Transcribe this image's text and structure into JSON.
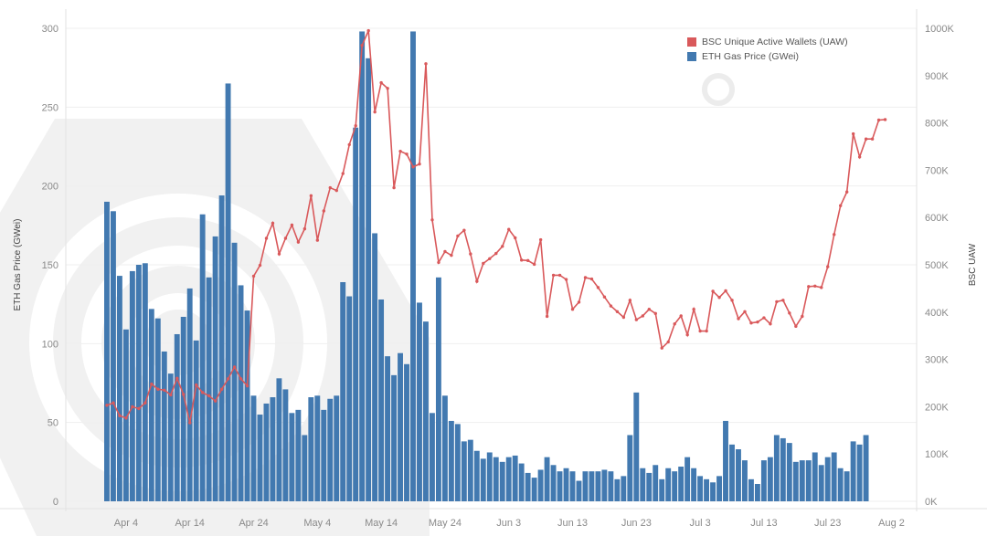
{
  "chart_data": {
    "type": "bar+line",
    "legend_position": "top-right",
    "grid": true,
    "xlabel": "",
    "ylabel_left": "ETH Gas Price (GWei)",
    "ylabel_right": "BSC UAW",
    "ylim_left": [
      0,
      300
    ],
    "ylim_right": [
      0,
      1000000
    ],
    "yticks_left": [
      "0",
      "50",
      "100",
      "150",
      "200",
      "250",
      "300"
    ],
    "yticks_right": [
      "0K",
      "100K",
      "200K",
      "300K",
      "400K",
      "500K",
      "600K",
      "700K",
      "800K",
      "900K",
      "1000K"
    ],
    "xticks": [
      {
        "label": "Apr 4",
        "date": "Apr 4"
      },
      {
        "label": "Apr 14",
        "date": "Apr 14"
      },
      {
        "label": "Apr 24",
        "date": "Apr 24"
      },
      {
        "label": "May 4",
        "date": "May 4"
      },
      {
        "label": "May 14",
        "date": "May 14"
      },
      {
        "label": "May 24",
        "date": "May 24"
      },
      {
        "label": "Jun 3",
        "date": "Jun 3"
      },
      {
        "label": "Jun 13",
        "date": "Jun 13"
      },
      {
        "label": "Jun 23",
        "date": "Jun 23"
      },
      {
        "label": "Jul 3",
        "date": "Jul 3"
      },
      {
        "label": "Jul 13",
        "date": "Jul 13"
      },
      {
        "label": "Jul 23",
        "date": "Jul 23"
      },
      {
        "label": "Aug 2",
        "date": "Aug 2"
      }
    ],
    "x": [
      "Apr 1",
      "Apr 2",
      "Apr 3",
      "Apr 4",
      "Apr 5",
      "Apr 6",
      "Apr 7",
      "Apr 8",
      "Apr 9",
      "Apr 10",
      "Apr 11",
      "Apr 12",
      "Apr 13",
      "Apr 14",
      "Apr 15",
      "Apr 16",
      "Apr 17",
      "Apr 18",
      "Apr 19",
      "Apr 20",
      "Apr 21",
      "Apr 22",
      "Apr 23",
      "Apr 24",
      "Apr 25",
      "Apr 26",
      "Apr 27",
      "Apr 28",
      "Apr 29",
      "Apr 30",
      "May 1",
      "May 2",
      "May 3",
      "May 4",
      "May 5",
      "May 6",
      "May 7",
      "May 8",
      "May 9",
      "May 10",
      "May 11",
      "May 12",
      "May 13",
      "May 14",
      "May 15",
      "May 16",
      "May 17",
      "May 18",
      "May 19",
      "May 20",
      "May 21",
      "May 22",
      "May 23",
      "May 24",
      "May 25",
      "May 26",
      "May 27",
      "May 28",
      "May 29",
      "May 30",
      "May 31",
      "Jun 1",
      "Jun 2",
      "Jun 3",
      "Jun 4",
      "Jun 5",
      "Jun 6",
      "Jun 7",
      "Jun 8",
      "Jun 9",
      "Jun 10",
      "Jun 11",
      "Jun 12",
      "Jun 13",
      "Jun 14",
      "Jun 15",
      "Jun 16",
      "Jun 17",
      "Jun 18",
      "Jun 19",
      "Jun 20",
      "Jun 21",
      "Jun 22",
      "Jun 23",
      "Jun 24",
      "Jun 25",
      "Jun 26",
      "Jun 27",
      "Jun 28",
      "Jun 29",
      "Jun 30",
      "Jul 1",
      "Jul 2",
      "Jul 3",
      "Jul 4",
      "Jul 5",
      "Jul 6",
      "Jul 7",
      "Jul 8",
      "Jul 9",
      "Jul 10",
      "Jul 11",
      "Jul 12",
      "Jul 13",
      "Jul 14",
      "Jul 15",
      "Jul 16",
      "Jul 17",
      "Jul 18",
      "Jul 19",
      "Jul 20",
      "Jul 21",
      "Jul 22",
      "Jul 23",
      "Jul 24",
      "Jul 25",
      "Jul 26",
      "Jul 27",
      "Jul 28",
      "Jul 29",
      "Jul 30",
      "Jul 31",
      "Aug 1"
    ],
    "series": [
      {
        "name": "ETH Gas Price (GWei)",
        "type": "bar",
        "axis": "left",
        "color": "#4279b0",
        "values": [
          190,
          184,
          143,
          109,
          146,
          150,
          151,
          122,
          116,
          95,
          81,
          106,
          117,
          135,
          102,
          182,
          142,
          168,
          194,
          265,
          164,
          137,
          121,
          67,
          55,
          62,
          66,
          78,
          71,
          56,
          58,
          42,
          66,
          67,
          58,
          65,
          67,
          139,
          130,
          237,
          298,
          281,
          170,
          128,
          92,
          80,
          94,
          87,
          298,
          126,
          114,
          56,
          142,
          67,
          51,
          49,
          38,
          39,
          32,
          27,
          31,
          28,
          25,
          28,
          29,
          24,
          18,
          15,
          20,
          28,
          23,
          19,
          21,
          19,
          13,
          19,
          19,
          19,
          20,
          19,
          14,
          16,
          42,
          69,
          21,
          18,
          23,
          14,
          21,
          19,
          22,
          28,
          21,
          16,
          14,
          12,
          16,
          51,
          36,
          33,
          26,
          14,
          11,
          26,
          28,
          42,
          40,
          37,
          25,
          26,
          26,
          31,
          23,
          28,
          31,
          21,
          19,
          38,
          36,
          42,
          null,
          null,
          null
        ]
      },
      {
        "name": "BSC Unique Active Wallets (UAW)",
        "type": "line",
        "axis": "right",
        "color": "#d9595b",
        "values": [
          203000,
          208000,
          181000,
          176000,
          200000,
          196000,
          208000,
          248000,
          237000,
          235000,
          225000,
          260000,
          226000,
          166000,
          246000,
          230000,
          223000,
          212000,
          237000,
          259000,
          284000,
          259000,
          244000,
          476000,
          499000,
          556000,
          588000,
          523000,
          556000,
          584000,
          548000,
          576000,
          646000,
          552000,
          614000,
          663000,
          657000,
          693000,
          754000,
          794000,
          964000,
          995000,
          823000,
          885000,
          873000,
          663000,
          740000,
          734000,
          707000,
          713000,
          925000,
          595000,
          505000,
          528000,
          520000,
          561000,
          573000,
          523000,
          465000,
          503000,
          513000,
          524000,
          539000,
          575000,
          557000,
          510000,
          509000,
          501000,
          553000,
          391000,
          478000,
          478000,
          469000,
          406000,
          421000,
          473000,
          470000,
          452000,
          432000,
          413000,
          401000,
          389000,
          425000,
          384000,
          392000,
          406000,
          397000,
          324000,
          337000,
          375000,
          392000,
          352000,
          406000,
          360000,
          360000,
          444000,
          431000,
          445000,
          425000,
          386000,
          401000,
          377000,
          379000,
          388000,
          375000,
          422000,
          425000,
          398000,
          370000,
          391000,
          454000,
          455000,
          452000,
          496000,
          564000,
          625000,
          654000,
          777000,
          728000,
          766000,
          766000,
          806000,
          807000
        ]
      }
    ]
  },
  "legend": {
    "items": [
      {
        "label": "BSC Unique Active Wallets (UAW)",
        "color": "#d9595b"
      },
      {
        "label": "ETH Gas Price (GWei)",
        "color": "#4279b0"
      }
    ]
  },
  "watermark": "DappRadar"
}
